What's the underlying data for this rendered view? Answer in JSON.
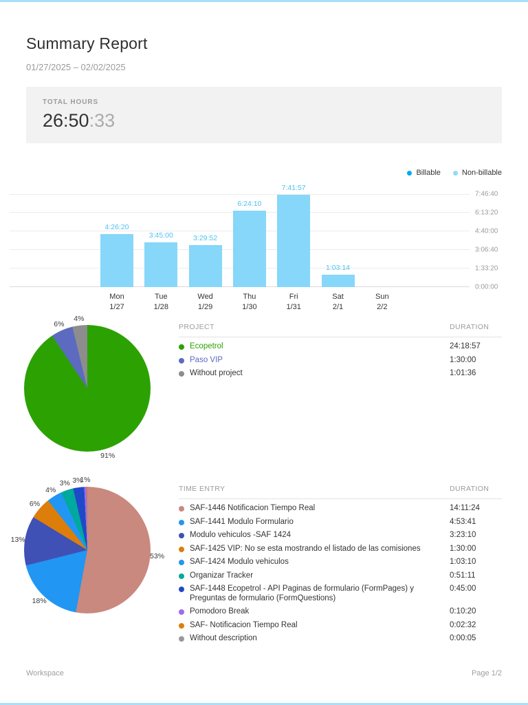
{
  "header": {
    "title": "Summary Report",
    "date_range": "01/27/2025 – 02/02/2025"
  },
  "total": {
    "label": "TOTAL HOURS",
    "hours_minutes": "26:50",
    "seconds_suffix": ":33"
  },
  "chart_data": [
    {
      "type": "bar",
      "title": "Tracked time per day",
      "categories": [
        "Mon",
        "Tue",
        "Wed",
        "Thu",
        "Fri",
        "Sat",
        "Sun"
      ],
      "date_labels": [
        "1/27",
        "1/28",
        "1/29",
        "1/30",
        "1/31",
        "2/1",
        "2/2"
      ],
      "value_labels": [
        "4:26:20",
        "3:45:00",
        "3:29:52",
        "6:24:10",
        "7:41:57",
        "1:03:14",
        ""
      ],
      "values_seconds": [
        15980,
        13500,
        12592,
        23050,
        27717,
        3794,
        0
      ],
      "ylim_seconds": [
        0,
        28000
      ],
      "ytick_labels": [
        "0:00:00",
        "1:33:20",
        "3:06:40",
        "4:40:00",
        "6:13:20",
        "7:46:40"
      ],
      "grid": true,
      "bar_color": "#86D7F9",
      "value_label_color": "#4BC2F1",
      "legend_position": "top-right",
      "legend": [
        {
          "label": "Billable",
          "color": "#03A9F4"
        },
        {
          "label": "Non-billable",
          "color": "#90DBF9"
        }
      ]
    },
    {
      "type": "pie",
      "name": "project-breakdown",
      "slices": [
        {
          "label": "Ecopetrol",
          "duration": "24:18:57",
          "pct": 90.6,
          "pct_label": "91%",
          "color": "#2CA102",
          "label_color": "#2CA102"
        },
        {
          "label": "Paso VIP",
          "duration": "1:30:00",
          "pct": 5.6,
          "pct_label": "6%",
          "color": "#5C6BC0",
          "label_color": "#5C6BC0"
        },
        {
          "label": "Without project",
          "duration": "1:01:36",
          "pct": 3.8,
          "pct_label": "4%",
          "color": "#8D8D8D"
        }
      ]
    },
    {
      "type": "pie",
      "name": "time-entry-breakdown",
      "slices": [
        {
          "label": "SAF-1446 Notificacion Tiempo Real",
          "duration": "14:11:24",
          "pct": 52.9,
          "pct_label": "53%",
          "color": "#C9897E"
        },
        {
          "label": "SAF-1441 Modulo Formulario",
          "duration": "4:53:41",
          "pct": 18.2,
          "pct_label": "18%",
          "color": "#2196F3"
        },
        {
          "label": "Modulo vehiculos -SAF 1424",
          "duration": "3:23:10",
          "pct": 12.6,
          "pct_label": "13%",
          "color": "#3F51B5"
        },
        {
          "label": "SAF-1425 VIP: No se esta mostrando el listado de las comisiones",
          "duration": "1:30:00",
          "pct": 5.6,
          "pct_label": "6%",
          "color": "#DD7E0B"
        },
        {
          "label": "SAF-1424 Modulo vehiculos",
          "duration": "1:03:10",
          "pct": 3.9,
          "pct_label": "4%",
          "color": "#2196F3"
        },
        {
          "label": "Organizar Tracker",
          "duration": "0:51:11",
          "pct": 3.2,
          "pct_label": "3%",
          "color": "#00A99D"
        },
        {
          "label": "SAF-1448 Ecopetrol - API Paginas de formulario (FormPages) y Preguntas de formulario (FormQuestions)",
          "duration": "0:45:00",
          "pct": 2.8,
          "pct_label": "3%",
          "color": "#2049C9"
        },
        {
          "label": "Pomodoro Break",
          "duration": "0:10:20",
          "pct": 0.64,
          "pct_label": "1%",
          "color": "#9D6CF0"
        },
        {
          "label": "SAF- Notificacion Tiempo Real",
          "duration": "0:02:32",
          "pct": 0.16,
          "pct_label": "",
          "color": "#DD7E0B"
        },
        {
          "label": "Without description",
          "duration": "0:00:05",
          "pct": 0.01,
          "pct_label": "",
          "color": "#999999"
        }
      ]
    }
  ],
  "project_table": {
    "headers": [
      "PROJECT",
      "DURATION"
    ]
  },
  "time_entry_table": {
    "headers": [
      "TIME ENTRY",
      "DURATION"
    ]
  },
  "footer": {
    "workspace": "Workspace",
    "page": "Page 1/2"
  }
}
